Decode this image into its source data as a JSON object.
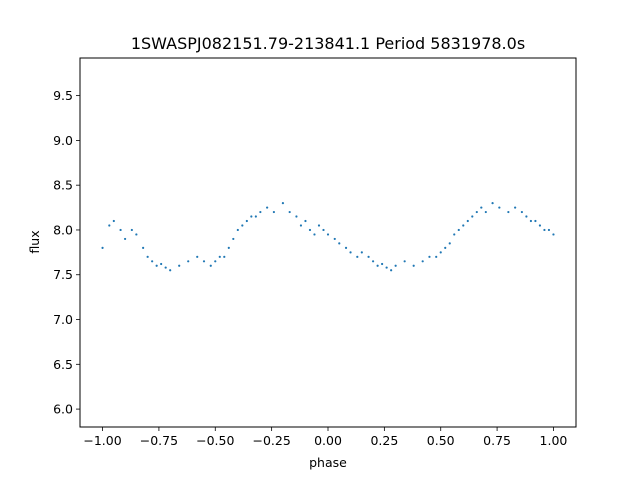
{
  "chart_data": {
    "type": "scatter",
    "title": "1SWASPJ082151.79-213841.1 Period 5831978.0s",
    "xlabel": "phase",
    "ylabel": "flux",
    "xlim": [
      -1.1,
      1.1
    ],
    "ylim": [
      5.8,
      9.92
    ],
    "xticks": [
      -1.0,
      -0.75,
      -0.5,
      -0.25,
      0.0,
      0.25,
      0.5,
      0.75,
      1.0
    ],
    "xtick_labels": [
      "−1.00",
      "−0.75",
      "−0.50",
      "−0.25",
      "0.00",
      "0.25",
      "0.50",
      "0.75",
      "1.00"
    ],
    "yticks": [
      6.0,
      6.5,
      7.0,
      7.5,
      8.0,
      8.5,
      9.0,
      9.5
    ],
    "ytick_labels": [
      "6.0",
      "6.5",
      "7.0",
      "7.5",
      "8.0",
      "8.5",
      "9.0",
      "9.5"
    ],
    "grid": false,
    "marker_color": "#1f77b4",
    "series": [
      {
        "x": [
          -1.0,
          -0.97,
          -0.95,
          -0.92,
          -0.9,
          -0.87,
          -0.85,
          -0.82,
          -0.8,
          -0.78,
          -0.76,
          -0.74,
          -0.72,
          -0.7,
          -0.66,
          -0.62,
          -0.58,
          -0.55,
          -0.52,
          -0.5,
          -0.48,
          -0.46,
          -0.44,
          -0.42,
          -0.4,
          -0.38,
          -0.36,
          -0.34,
          -0.32,
          -0.3,
          -0.27,
          -0.24,
          -0.2,
          -0.17,
          -0.14,
          -0.12,
          -0.1,
          -0.08,
          -0.06,
          -0.04,
          -0.02,
          0.0,
          0.03,
          0.05,
          0.08,
          0.1,
          0.13,
          0.15,
          0.18,
          0.2,
          0.22,
          0.24,
          0.26,
          0.28,
          0.3,
          0.34,
          0.38,
          0.42,
          0.45,
          0.48,
          0.5,
          0.52,
          0.54,
          0.56,
          0.58,
          0.6,
          0.62,
          0.64,
          0.66,
          0.68,
          0.7,
          0.73,
          0.76,
          0.8,
          0.83,
          0.86,
          0.88,
          0.9,
          0.92,
          0.94,
          0.96,
          0.98,
          1.0
        ],
        "y": [
          7.8,
          8.05,
          8.1,
          8.0,
          7.9,
          8.0,
          7.95,
          7.8,
          7.7,
          7.65,
          7.6,
          7.62,
          7.58,
          7.55,
          7.6,
          7.65,
          7.7,
          7.65,
          7.6,
          7.65,
          7.7,
          7.7,
          7.8,
          7.9,
          8.0,
          8.05,
          8.1,
          8.15,
          8.15,
          8.2,
          8.25,
          8.2,
          8.3,
          8.2,
          8.15,
          8.05,
          8.1,
          8.0,
          7.95,
          8.05,
          8.0,
          7.95,
          7.9,
          7.85,
          7.8,
          7.75,
          7.7,
          7.75,
          7.7,
          7.65,
          7.6,
          7.62,
          7.58,
          7.55,
          7.6,
          7.65,
          7.6,
          7.65,
          7.7,
          7.7,
          7.75,
          7.8,
          7.85,
          7.95,
          8.0,
          8.05,
          8.1,
          8.15,
          8.2,
          8.25,
          8.2,
          8.3,
          8.25,
          8.2,
          8.25,
          8.2,
          8.15,
          8.1,
          8.1,
          8.05,
          8.0,
          8.0,
          7.95
        ]
      }
    ]
  }
}
